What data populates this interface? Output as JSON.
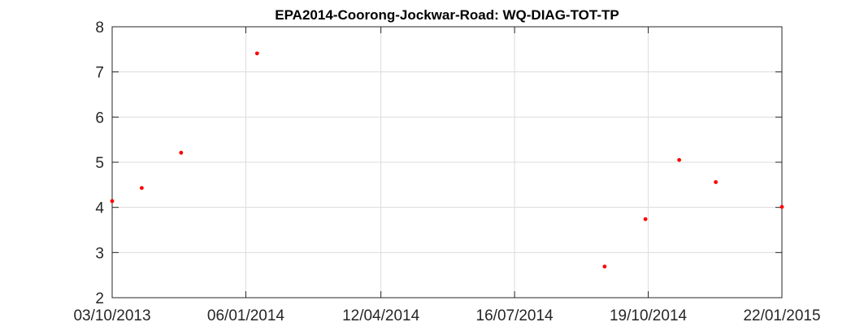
{
  "chart_data": {
    "type": "scatter",
    "title": "EPA2014-Coorong-Jockwar-Road: WQ-DIAG-TOT-TP",
    "xlabel": "",
    "ylabel": "",
    "x_type": "date",
    "xlim": [
      "2013-10-03",
      "2015-01-22"
    ],
    "ylim": [
      2,
      8
    ],
    "x_ticks": [
      "2013-10-03",
      "2014-01-06",
      "2014-04-12",
      "2014-07-16",
      "2014-10-19",
      "2015-01-22"
    ],
    "x_tick_labels": [
      "03/10/2013",
      "06/01/2014",
      "12/04/2014",
      "16/07/2014",
      "19/10/2014",
      "22/01/2015"
    ],
    "y_ticks": [
      2,
      3,
      4,
      5,
      6,
      7,
      8
    ],
    "y_tick_labels": [
      "2",
      "3",
      "4",
      "5",
      "6",
      "7",
      "8"
    ],
    "grid": true,
    "marker_color": "#ff0000",
    "series": [
      {
        "x": [
          "2013-10-03",
          "2013-10-24",
          "2013-11-21",
          "2014-01-14",
          "2014-09-18",
          "2014-10-17",
          "2014-11-10",
          "2014-12-06",
          "2015-01-22"
        ],
        "y": [
          4.14,
          4.43,
          5.21,
          7.41,
          2.69,
          3.74,
          5.05,
          4.56,
          4.01
        ]
      }
    ]
  }
}
